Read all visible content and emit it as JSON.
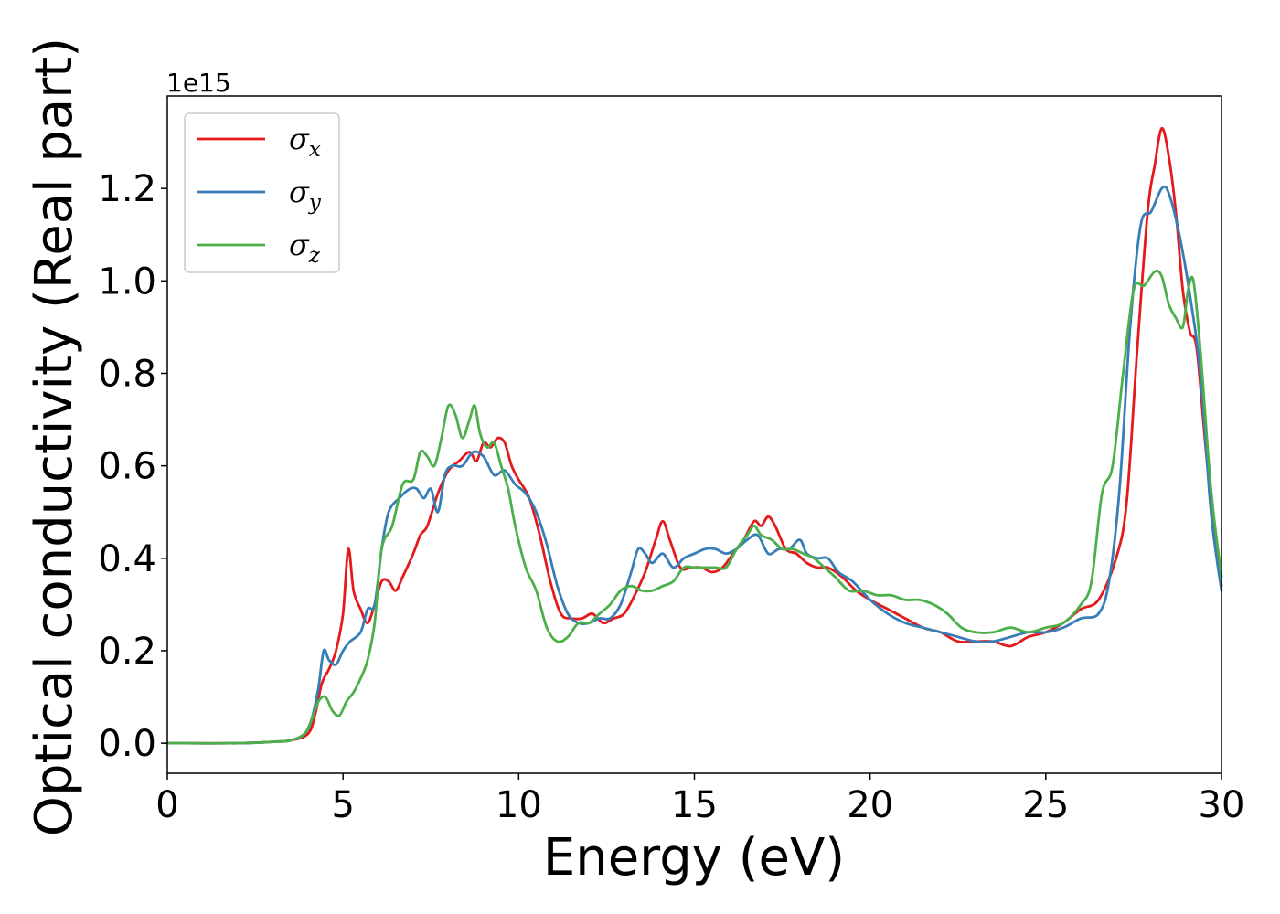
{
  "chart_data": {
    "type": "line",
    "title": "",
    "xlabel": "Energy (eV)",
    "ylabel": "Optical conductivity (Real part)",
    "y_offset_label": "1e15",
    "xlim": [
      0,
      30
    ],
    "ylim": [
      -0.065,
      1.4
    ],
    "xticks": [
      0,
      5,
      10,
      15,
      20,
      25,
      30
    ],
    "xtick_labels": [
      "0",
      "5",
      "10",
      "15",
      "20",
      "25",
      "30"
    ],
    "yticks": [
      0.0,
      0.2,
      0.4,
      0.6,
      0.8,
      1.0,
      1.2
    ],
    "ytick_labels": [
      "0.0",
      "0.2",
      "0.4",
      "0.6",
      "0.8",
      "1.0",
      "1.2"
    ],
    "grid": false,
    "legend_position": "top-left",
    "series": [
      {
        "name": "σx",
        "symbol": "σ",
        "subscript": "x",
        "color": "#e41a1c",
        "x": [
          0,
          2,
          3,
          3.5,
          4.0,
          4.2,
          4.4,
          4.6,
          4.8,
          5.0,
          5.15,
          5.3,
          5.5,
          5.7,
          5.9,
          6.1,
          6.3,
          6.5,
          6.7,
          7.0,
          7.2,
          7.4,
          7.7,
          8.0,
          8.3,
          8.6,
          8.8,
          9.0,
          9.2,
          9.4,
          9.6,
          9.8,
          10.0,
          10.3,
          10.6,
          10.9,
          11.2,
          11.5,
          11.8,
          12.1,
          12.4,
          12.7,
          13.0,
          13.3,
          13.6,
          13.9,
          14.1,
          14.3,
          14.6,
          14.9,
          15.2,
          15.5,
          15.8,
          16.1,
          16.4,
          16.7,
          16.9,
          17.1,
          17.3,
          17.6,
          17.9,
          18.2,
          18.5,
          18.8,
          19.2,
          19.6,
          20.0,
          20.5,
          21.0,
          21.5,
          22.0,
          22.5,
          23.0,
          23.5,
          24.0,
          24.5,
          25.0,
          25.5,
          26.0,
          26.5,
          27.0,
          27.3,
          27.6,
          27.9,
          28.1,
          28.3,
          28.5,
          28.7,
          28.9,
          29.1,
          29.3,
          29.6,
          30.0
        ],
        "values": [
          0.0,
          0.0,
          0.003,
          0.006,
          0.02,
          0.06,
          0.13,
          0.16,
          0.2,
          0.28,
          0.42,
          0.33,
          0.29,
          0.26,
          0.3,
          0.35,
          0.35,
          0.33,
          0.36,
          0.41,
          0.45,
          0.47,
          0.54,
          0.59,
          0.61,
          0.63,
          0.61,
          0.65,
          0.64,
          0.66,
          0.65,
          0.6,
          0.57,
          0.53,
          0.45,
          0.35,
          0.28,
          0.27,
          0.27,
          0.28,
          0.26,
          0.27,
          0.28,
          0.32,
          0.37,
          0.44,
          0.48,
          0.44,
          0.38,
          0.38,
          0.38,
          0.37,
          0.38,
          0.41,
          0.44,
          0.48,
          0.47,
          0.49,
          0.47,
          0.42,
          0.41,
          0.39,
          0.38,
          0.38,
          0.36,
          0.33,
          0.31,
          0.29,
          0.27,
          0.25,
          0.24,
          0.22,
          0.22,
          0.22,
          0.21,
          0.23,
          0.24,
          0.26,
          0.29,
          0.31,
          0.4,
          0.52,
          0.85,
          1.15,
          1.25,
          1.33,
          1.27,
          1.15,
          0.98,
          0.89,
          0.85,
          0.6,
          0.34
        ]
      },
      {
        "name": "σy",
        "symbol": "σ",
        "subscript": "y",
        "color": "#377eb8",
        "x": [
          0,
          2,
          3,
          3.5,
          3.9,
          4.1,
          4.3,
          4.45,
          4.6,
          4.8,
          5.0,
          5.2,
          5.5,
          5.7,
          5.9,
          6.1,
          6.3,
          6.6,
          6.9,
          7.1,
          7.3,
          7.5,
          7.7,
          7.9,
          8.1,
          8.4,
          8.7,
          9.0,
          9.3,
          9.6,
          9.9,
          10.2,
          10.5,
          10.8,
          11.1,
          11.4,
          11.7,
          12.0,
          12.3,
          12.6,
          12.9,
          13.2,
          13.4,
          13.6,
          13.8,
          14.1,
          14.4,
          14.7,
          15.0,
          15.3,
          15.6,
          15.9,
          16.2,
          16.5,
          16.8,
          17.1,
          17.4,
          17.7,
          18.0,
          18.2,
          18.5,
          18.8,
          19.1,
          19.5,
          20.0,
          20.5,
          21.0,
          21.5,
          22.0,
          22.5,
          23.0,
          23.5,
          24.0,
          24.5,
          25.0,
          25.5,
          26.0,
          26.5,
          26.8,
          27.1,
          27.4,
          27.7,
          28.0,
          28.3,
          28.5,
          28.8,
          29.1,
          29.4,
          29.7,
          30.0
        ],
        "values": [
          0.0,
          0.0,
          0.003,
          0.006,
          0.02,
          0.05,
          0.12,
          0.2,
          0.18,
          0.17,
          0.2,
          0.22,
          0.24,
          0.29,
          0.3,
          0.42,
          0.5,
          0.53,
          0.55,
          0.55,
          0.53,
          0.55,
          0.5,
          0.58,
          0.6,
          0.6,
          0.63,
          0.62,
          0.58,
          0.59,
          0.56,
          0.54,
          0.5,
          0.43,
          0.34,
          0.28,
          0.26,
          0.26,
          0.27,
          0.27,
          0.3,
          0.37,
          0.42,
          0.41,
          0.39,
          0.41,
          0.38,
          0.4,
          0.41,
          0.42,
          0.42,
          0.41,
          0.42,
          0.44,
          0.45,
          0.41,
          0.42,
          0.42,
          0.44,
          0.41,
          0.4,
          0.4,
          0.37,
          0.35,
          0.31,
          0.28,
          0.26,
          0.25,
          0.24,
          0.23,
          0.22,
          0.22,
          0.23,
          0.24,
          0.24,
          0.25,
          0.27,
          0.28,
          0.35,
          0.55,
          0.9,
          1.12,
          1.15,
          1.2,
          1.19,
          1.1,
          0.97,
          0.8,
          0.5,
          0.33
        ]
      },
      {
        "name": "σz",
        "symbol": "σ",
        "subscript": "z",
        "color": "#4daf4a",
        "x": [
          0,
          2,
          3,
          3.5,
          3.9,
          4.1,
          4.3,
          4.5,
          4.7,
          4.9,
          5.1,
          5.3,
          5.5,
          5.7,
          5.9,
          6.1,
          6.4,
          6.7,
          7.0,
          7.2,
          7.4,
          7.6,
          7.8,
          8.0,
          8.2,
          8.4,
          8.6,
          8.75,
          8.9,
          9.1,
          9.3,
          9.5,
          9.7,
          9.9,
          10.2,
          10.5,
          10.8,
          11.1,
          11.4,
          11.7,
          12.0,
          12.3,
          12.6,
          12.9,
          13.2,
          13.5,
          13.8,
          14.1,
          14.4,
          14.7,
          15.0,
          15.3,
          15.6,
          15.9,
          16.2,
          16.5,
          16.7,
          16.9,
          17.2,
          17.5,
          17.8,
          18.1,
          18.4,
          18.7,
          19.0,
          19.4,
          19.8,
          20.2,
          20.6,
          21.0,
          21.4,
          21.8,
          22.2,
          22.6,
          23.0,
          23.5,
          24.0,
          24.5,
          25.0,
          25.5,
          26.0,
          26.3,
          26.6,
          26.9,
          27.2,
          27.5,
          27.8,
          28.1,
          28.3,
          28.5,
          28.7,
          28.9,
          29.05,
          29.2,
          29.4,
          29.7,
          30.0
        ],
        "values": [
          0.0,
          0.0,
          0.003,
          0.006,
          0.02,
          0.05,
          0.09,
          0.1,
          0.07,
          0.06,
          0.09,
          0.11,
          0.14,
          0.18,
          0.26,
          0.42,
          0.47,
          0.56,
          0.57,
          0.63,
          0.62,
          0.6,
          0.66,
          0.73,
          0.71,
          0.66,
          0.7,
          0.73,
          0.67,
          0.64,
          0.65,
          0.6,
          0.55,
          0.47,
          0.38,
          0.33,
          0.25,
          0.22,
          0.23,
          0.26,
          0.26,
          0.28,
          0.3,
          0.33,
          0.34,
          0.33,
          0.33,
          0.34,
          0.35,
          0.38,
          0.38,
          0.38,
          0.38,
          0.38,
          0.42,
          0.45,
          0.47,
          0.45,
          0.44,
          0.42,
          0.42,
          0.41,
          0.4,
          0.38,
          0.36,
          0.33,
          0.33,
          0.32,
          0.32,
          0.31,
          0.31,
          0.3,
          0.28,
          0.25,
          0.24,
          0.24,
          0.25,
          0.24,
          0.25,
          0.26,
          0.3,
          0.35,
          0.54,
          0.6,
          0.8,
          0.98,
          0.99,
          1.02,
          1.01,
          0.95,
          0.92,
          0.9,
          0.98,
          1.0,
          0.85,
          0.55,
          0.36
        ]
      }
    ]
  }
}
